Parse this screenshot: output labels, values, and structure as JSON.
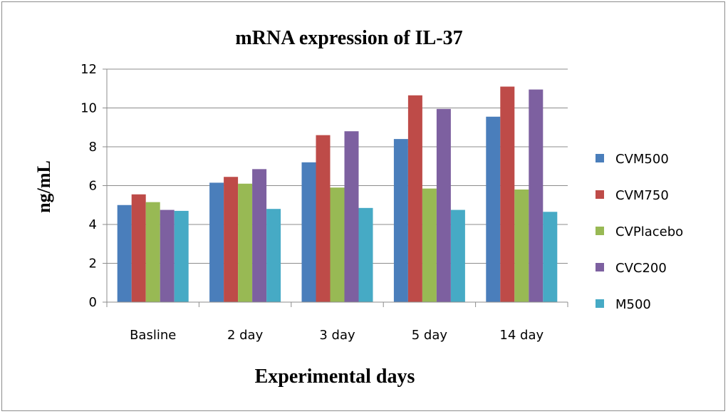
{
  "chart_data": {
    "type": "bar",
    "title": "mRNA expression of IL-37",
    "xlabel": "Experimental days",
    "ylabel": "ng/mL",
    "categories": [
      "Basline",
      "2 day",
      "3 day",
      "5 day",
      "14 day"
    ],
    "ylim": [
      0,
      12
    ],
    "yticks": [
      0,
      2,
      4,
      6,
      8,
      10,
      12
    ],
    "grid": true,
    "legend_position": "right",
    "series": [
      {
        "name": "CVM500",
        "color": "#4a7ebb",
        "values": [
          5.0,
          6.15,
          7.2,
          8.4,
          9.55
        ]
      },
      {
        "name": "CVM750",
        "color": "#be4b48",
        "values": [
          5.55,
          6.45,
          8.6,
          10.65,
          11.1
        ]
      },
      {
        "name": "CVPlacebo",
        "color": "#98b954",
        "values": [
          5.15,
          6.1,
          5.9,
          5.85,
          5.8
        ]
      },
      {
        "name": "CVC200",
        "color": "#7d60a0",
        "values": [
          4.75,
          6.85,
          8.8,
          9.95,
          10.95
        ]
      },
      {
        "name": "M500",
        "color": "#46aac5",
        "values": [
          4.7,
          4.8,
          4.85,
          4.75,
          4.65
        ]
      }
    ]
  }
}
